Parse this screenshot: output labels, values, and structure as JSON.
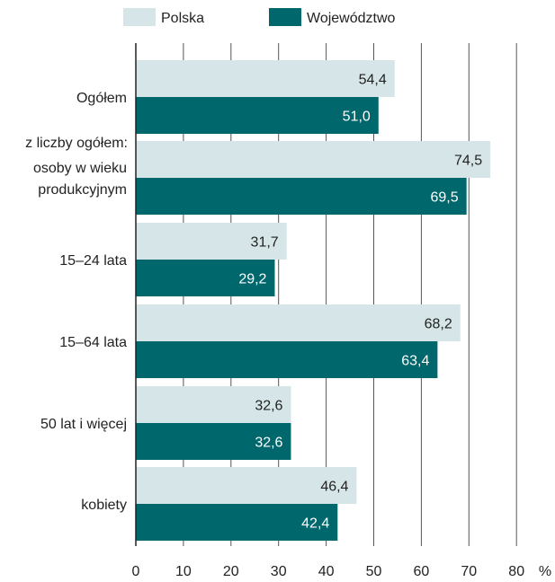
{
  "chart_data": {
    "type": "bar",
    "orientation": "horizontal",
    "categories": [
      "Ogółem",
      "osoby w wieku produkcyjnym",
      "15–24 lata",
      "15–64 lata",
      "50 lat i więcej",
      "kobiety"
    ],
    "category_lines": [
      [
        "Ogółem"
      ],
      [
        "osoby w wieku",
        "produkcyjnym"
      ],
      [
        "15–24 lata"
      ],
      [
        "15–64 lata"
      ],
      [
        "50 lat i więcej"
      ],
      [
        "kobiety"
      ]
    ],
    "subheading": "z liczby ogółem:",
    "series": [
      {
        "name": "Polska",
        "values": [
          54.4,
          74.5,
          31.7,
          68.2,
          32.6,
          46.4
        ],
        "labels": [
          "54,4",
          "74,5",
          "31,7",
          "68,2",
          "32,6",
          "46,4"
        ],
        "color": "#d6e6e8",
        "label_color": "#222222"
      },
      {
        "name": "Województwo",
        "values": [
          51.0,
          69.5,
          29.2,
          63.4,
          32.6,
          42.4
        ],
        "labels": [
          "51,0",
          "69,5",
          "29,2",
          "63,4",
          "32,6",
          "42,4"
        ],
        "color": "#00676c",
        "label_color": "#ffffff"
      }
    ],
    "xlim": [
      0,
      80
    ],
    "xticks": [
      "0",
      "10",
      "20",
      "30",
      "40",
      "50",
      "60",
      "70",
      "80"
    ],
    "unit": "%",
    "grid": "vertical",
    "legend_position": "top"
  }
}
